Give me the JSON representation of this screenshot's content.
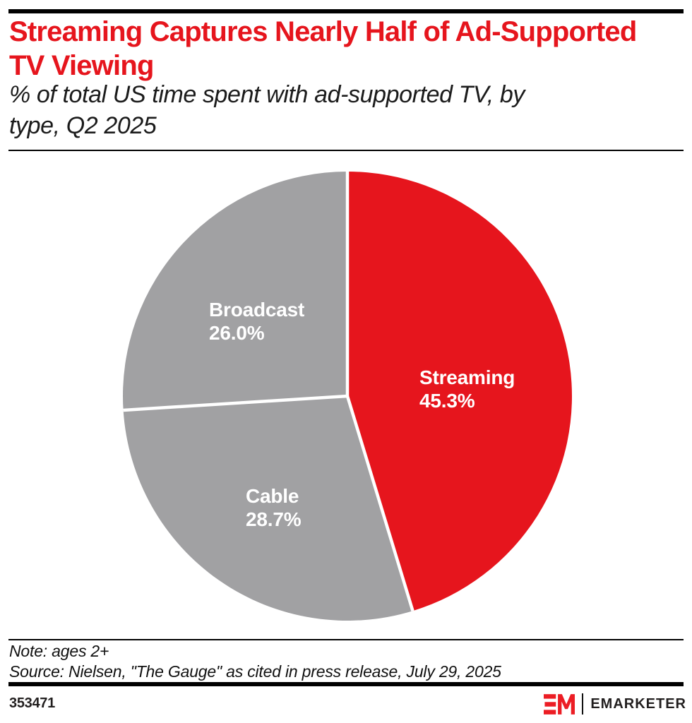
{
  "header": {
    "title": "Streaming Captures Nearly Half of Ad-Supported TV Viewing",
    "subtitle": "% of total US time spent with ad-supported TV, by type, Q2 2025"
  },
  "chart_data": {
    "type": "pie",
    "title": "Streaming Captures Nearly Half of Ad-Supported TV Viewing",
    "unit": "% of total US time spent with ad-supported TV",
    "period": "Q2 2025",
    "start_angle": "top",
    "direction": "clockwise",
    "separator_color": "#FFFFFF",
    "slices": [
      {
        "label": "Streaming",
        "value": 45.3,
        "pct": "45.3%",
        "color": "#E6151D"
      },
      {
        "label": "Cable",
        "value": 28.7,
        "pct": "28.7%",
        "color": "#A1A1A3"
      },
      {
        "label": "Broadcast",
        "value": 26.0,
        "pct": "26.0%",
        "color": "#A1A1A3"
      }
    ]
  },
  "footer": {
    "note": "Note: ages 2+",
    "source": "Source: Nielsen, \"The Gauge\" as cited in press release, July 29, 2025",
    "chart_id": "353471",
    "logo_text": "EMARKETER"
  },
  "colors": {
    "accent_red": "#E6151D",
    "logo_red": "#EC1D24",
    "slice_gray": "#A1A1A3",
    "text_dark": "#1B1B1B",
    "bar_black": "#000000"
  }
}
